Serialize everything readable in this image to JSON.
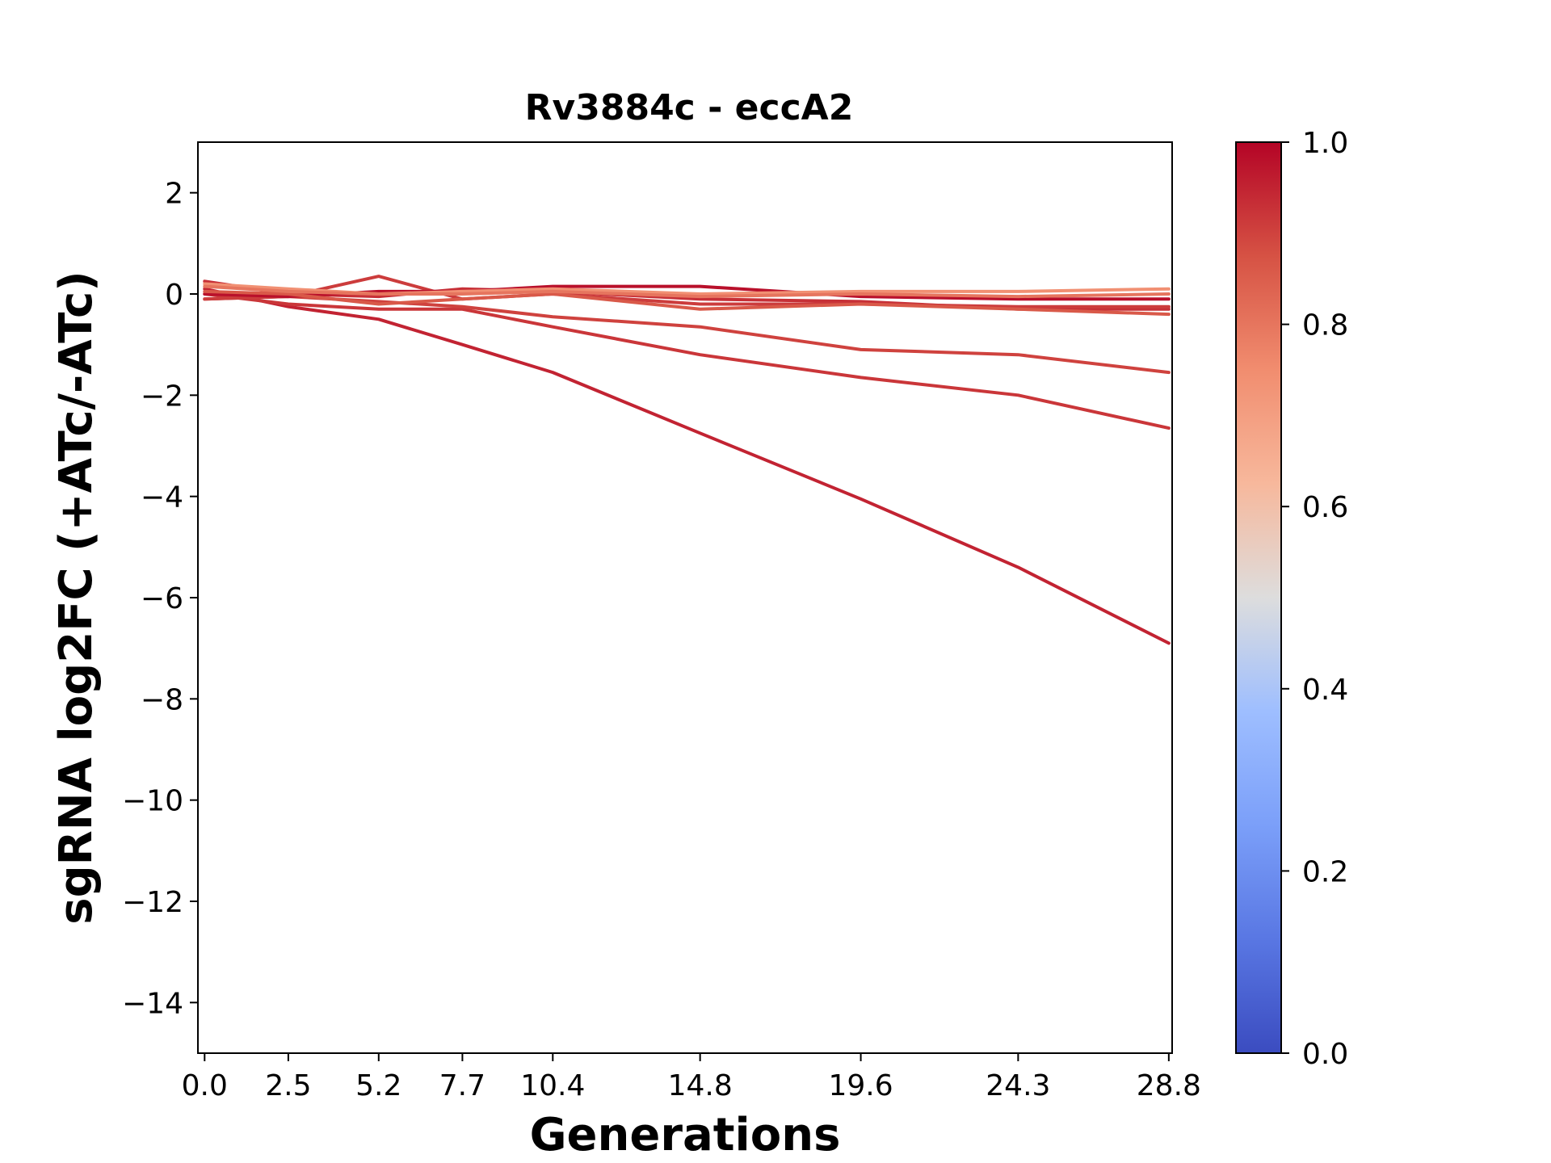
{
  "chart_data": {
    "type": "line",
    "title": "Rv3884c - eccA2",
    "xlabel": "Generations",
    "ylabel": "sgRNA log2FC (+ATc/-ATc)",
    "x": [
      0.0,
      2.5,
      5.2,
      7.7,
      10.4,
      14.8,
      19.6,
      24.3,
      28.8
    ],
    "x_tick_labels": [
      "0.0",
      "2.5",
      "5.2",
      "7.7",
      "10.4",
      "14.8",
      "19.6",
      "24.3",
      "28.8"
    ],
    "xlim": [
      -0.2,
      28.9
    ],
    "ylim": [
      -15,
      3
    ],
    "y_ticks": [
      2,
      0,
      -2,
      -4,
      -6,
      -8,
      -10,
      -12,
      -14
    ],
    "y_tick_labels": [
      "2",
      "0",
      "−2",
      "−4",
      "−6",
      "−8",
      "−10",
      "−12",
      "−14"
    ],
    "grid": false,
    "colormap": "coolwarm",
    "colorbar": {
      "ticks": [
        0.0,
        0.2,
        0.4,
        0.6,
        0.8,
        1.0
      ],
      "tick_labels": [
        "0.0",
        "0.2",
        "0.4",
        "0.6",
        "0.8",
        "1.0"
      ],
      "stops": [
        {
          "t": 0.0,
          "color": "#3b4cc0"
        },
        {
          "t": 0.125,
          "color": "#5977e3"
        },
        {
          "t": 0.25,
          "color": "#7b9ff9"
        },
        {
          "t": 0.375,
          "color": "#9ebeff"
        },
        {
          "t": 0.5,
          "color": "#dddddd"
        },
        {
          "t": 0.625,
          "color": "#f7b89c"
        },
        {
          "t": 0.75,
          "color": "#f18d6f"
        },
        {
          "t": 0.875,
          "color": "#d65244"
        },
        {
          "t": 1.0,
          "color": "#b40426"
        }
      ]
    },
    "series": [
      {
        "values": [
          0.1,
          -0.25,
          -0.5,
          -1.0,
          -1.55,
          -2.75,
          -4.05,
          -5.4,
          -6.9
        ],
        "color_value": 0.95
      },
      {
        "values": [
          0.0,
          -0.2,
          -0.3,
          -0.3,
          -0.65,
          -1.2,
          -1.65,
          -2.0,
          -2.65
        ],
        "color_value": 0.92
      },
      {
        "values": [
          -0.1,
          -0.05,
          -0.15,
          -0.25,
          -0.45,
          -0.65,
          -1.1,
          -1.2,
          -1.55
        ],
        "color_value": 0.9
      },
      {
        "values": [
          0.25,
          0.0,
          -0.05,
          0.1,
          0.05,
          -0.1,
          -0.15,
          -0.3,
          -0.3
        ],
        "color_value": 0.93
      },
      {
        "values": [
          -0.1,
          -0.05,
          0.35,
          -0.1,
          0.0,
          -0.2,
          -0.2,
          -0.25,
          -0.25
        ],
        "color_value": 0.91
      },
      {
        "values": [
          0.0,
          -0.05,
          0.05,
          0.05,
          0.15,
          0.15,
          -0.05,
          -0.1,
          -0.1
        ],
        "color_value": 0.98
      },
      {
        "values": [
          0.05,
          0.0,
          -0.2,
          -0.1,
          0.0,
          -0.3,
          -0.2,
          -0.3,
          -0.4
        ],
        "color_value": 0.86
      },
      {
        "values": [
          0.2,
          0.1,
          0.0,
          0.05,
          0.1,
          0.0,
          0.05,
          0.05,
          0.1
        ],
        "color_value": 0.74
      },
      {
        "values": [
          0.15,
          0.05,
          0.0,
          0.0,
          0.05,
          -0.05,
          0.0,
          -0.05,
          0.0
        ],
        "color_value": 0.8
      }
    ]
  }
}
